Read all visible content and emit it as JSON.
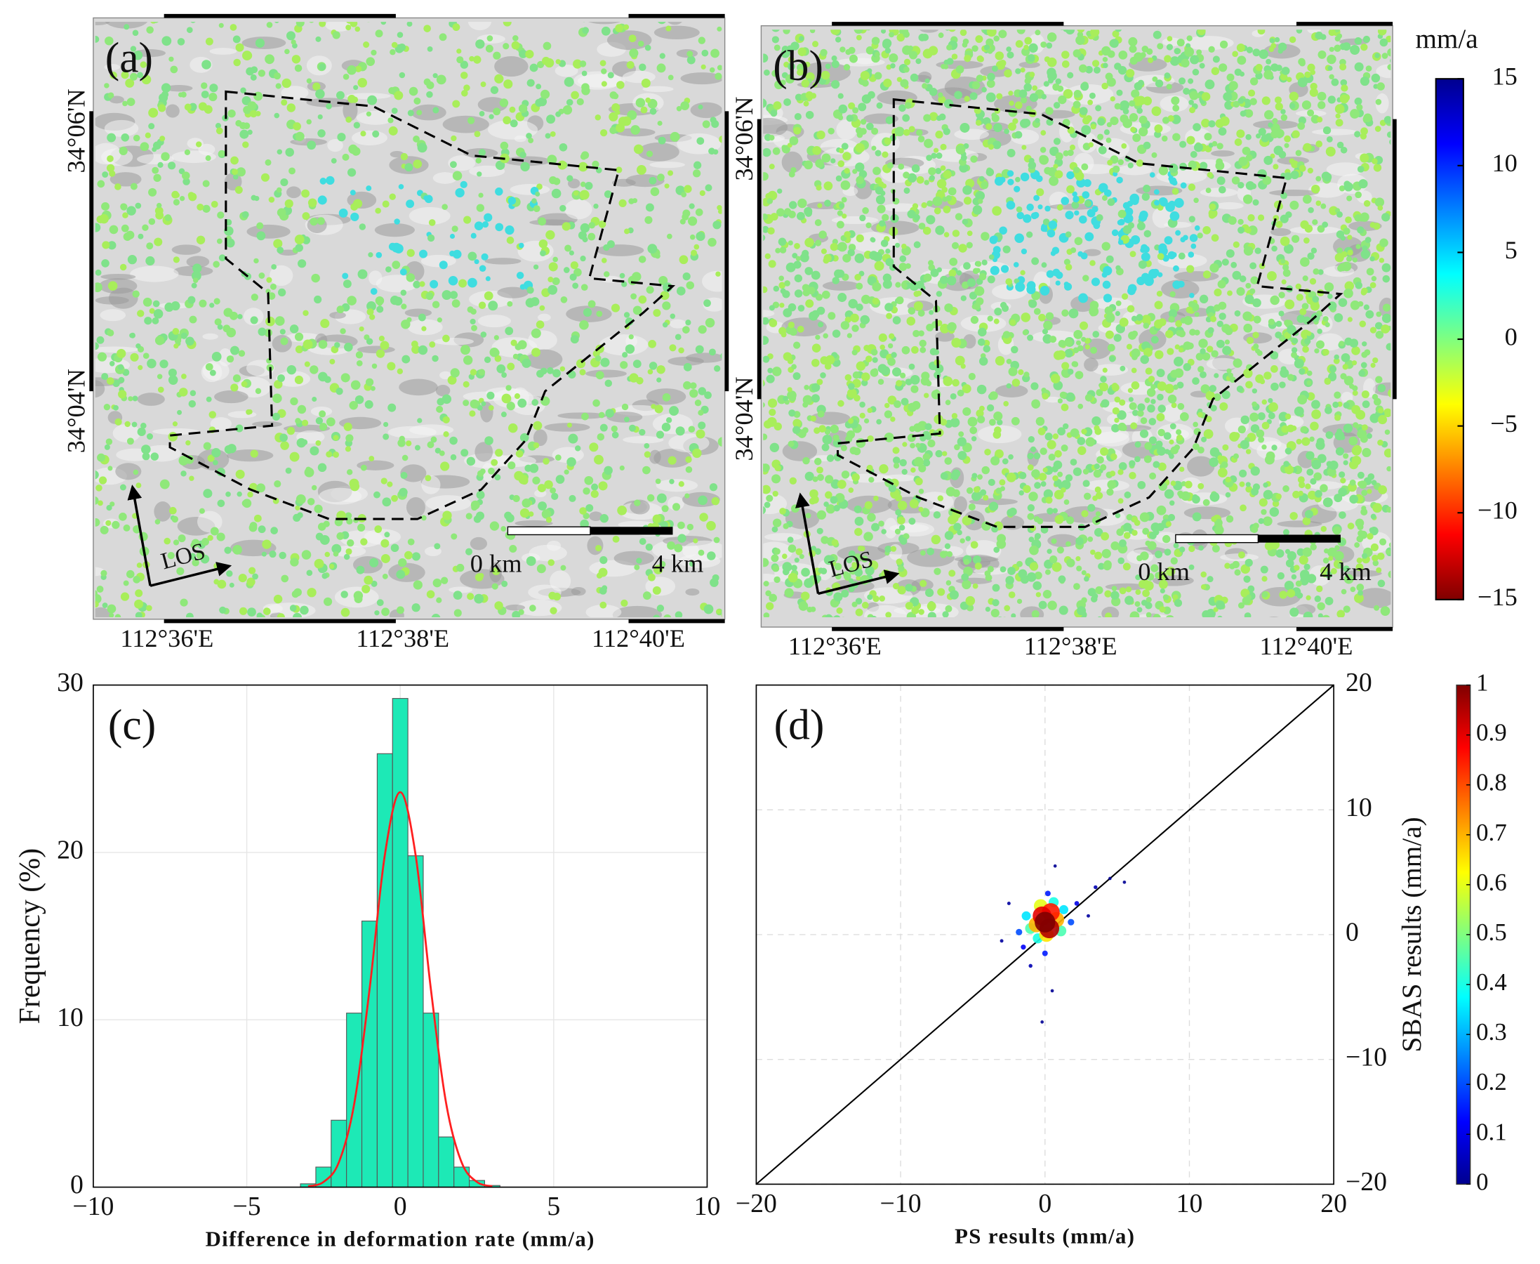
{
  "chart_data": [
    {
      "type": "map",
      "label": "(a)",
      "lat_labels": [
        "34°06'N",
        "34°04'N"
      ],
      "lon_labels": [
        "112°36'E",
        "112°38'E",
        "112°40'E"
      ],
      "scale_labels": [
        "0 km",
        "4 km"
      ],
      "arrow_label": "LOS"
    },
    {
      "type": "map",
      "label": "(b)",
      "lat_labels": [
        "34°06'N",
        "34°04'N"
      ],
      "lon_labels": [
        "112°36'E",
        "112°38'E",
        "112°40'E"
      ],
      "scale_labels": [
        "0 km",
        "4 km"
      ],
      "arrow_label": "LOS",
      "colorbar": {
        "label": "mm/a",
        "lim": [
          -15,
          15
        ],
        "ticks": [
          15,
          10,
          5,
          0,
          {
            "value": -5,
            "label": "−5"
          },
          {
            "value": -10,
            "label": "−10"
          },
          {
            "value": -15,
            "label": "−15"
          }
        ]
      }
    },
    {
      "type": "histogram",
      "label": "(c)",
      "x_label": "Difference in deformation rate (mm/a)",
      "y_label": "Frequency (%)",
      "color": "#1de9b6",
      "bins": [
        -3.25,
        -2.75,
        -2.25,
        -1.75,
        -1.25,
        -0.75,
        -0.25,
        0.25,
        0.75,
        1.25,
        1.75,
        2.25,
        2.75,
        3.25
      ],
      "values": [
        0.2,
        1.2,
        4.0,
        10.4,
        15.9,
        25.9,
        29.2,
        19.8,
        10.4,
        3.0,
        1.2,
        0.4,
        0.1
      ],
      "fit": {
        "color": "#ff2020",
        "x": [
          -3,
          -2.5,
          -2,
          -1.5,
          -1,
          -0.5,
          0,
          0.5,
          1,
          1.5,
          2,
          2.5,
          3
        ],
        "values": [
          0.05,
          0.31,
          1.48,
          4.97,
          11.81,
          19.86,
          23.6,
          19.86,
          11.81,
          4.97,
          1.48,
          0.31,
          0.05
        ]
      },
      "xlim": [
        -10,
        10
      ],
      "ylim": [
        0,
        30
      ],
      "xticks": [
        {
          "value": -10,
          "label": "−10"
        },
        {
          "value": -5,
          "label": "−5"
        },
        0,
        5,
        10
      ],
      "yticks": [
        0,
        10,
        20,
        30
      ],
      "grid": true
    },
    {
      "type": "scatter",
      "label": "(d)",
      "x_label": "PS results (mm/a)",
      "y_label": "SBAS results (mm/a)",
      "x": [
        5.5,
        4.5,
        0.5,
        -0.2,
        0.7,
        3.5,
        -3,
        -2.5,
        3,
        -1,
        2.2,
        -1.5,
        0,
        0.2,
        -1.8,
        1.8,
        1.3,
        -1.3,
        -0.5,
        0.6,
        -1,
        1.1,
        -0.3,
        0.1,
        -0.6,
        0.8,
        0.4,
        -0.2,
        0.3,
        0
      ],
      "y": [
        4.2,
        4.5,
        -4.5,
        -7,
        5.5,
        3.8,
        -0.5,
        2.5,
        1.5,
        -2.5,
        2.5,
        -1,
        -1.5,
        3.3,
        0.2,
        1,
        2,
        1.5,
        -0.3,
        2.6,
        0.5,
        0.3,
        2.3,
        0,
        0.8,
        1.2,
        1.8,
        1.5,
        0.5,
        1
      ],
      "density": [
        0.02,
        0.02,
        0.02,
        0.02,
        0.02,
        0.05,
        0.03,
        0.03,
        0.03,
        0.05,
        0.1,
        0.12,
        0.15,
        0.15,
        0.2,
        0.2,
        0.35,
        0.35,
        0.4,
        0.4,
        0.45,
        0.45,
        0.6,
        0.65,
        0.7,
        0.7,
        0.85,
        0.9,
        0.95,
        1
      ],
      "line_color": "#000000",
      "xlim": [
        -20,
        20
      ],
      "ylim": [
        -20,
        20
      ],
      "xticks": [
        {
          "value": -20,
          "label": "−20"
        },
        {
          "value": -10,
          "label": "−10"
        },
        0,
        10,
        20
      ],
      "yticks": [
        {
          "value": -20,
          "label": "−20"
        },
        {
          "value": -10,
          "label": "−10"
        },
        0,
        10,
        20
      ],
      "grid": true,
      "colorbar": {
        "lim": [
          0,
          1
        ],
        "ticks": [
          0,
          0.1,
          0.2,
          0.3,
          0.4,
          0.5,
          0.6,
          0.7,
          0.8,
          0.9,
          1
        ]
      }
    }
  ]
}
